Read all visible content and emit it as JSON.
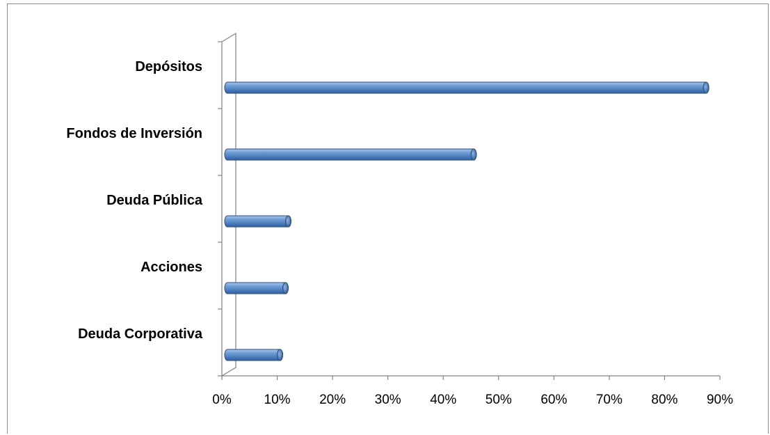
{
  "chart_data": {
    "type": "bar",
    "orientation": "horizontal",
    "style": "3d-cylinder",
    "categories": [
      "Depósitos",
      "Fondos de Inversión",
      "Deuda Pública",
      "Acciones",
      "Deuda Corporativa"
    ],
    "values": [
      88,
      46,
      12.5,
      12,
      11
    ],
    "x_ticks": [
      "0%",
      "10%",
      "20%",
      "30%",
      "40%",
      "50%",
      "60%",
      "70%",
      "80%",
      "90%"
    ],
    "xlim": [
      0,
      90
    ],
    "grid": false,
    "legend": "none",
    "bar_color": "#4f81bd"
  }
}
